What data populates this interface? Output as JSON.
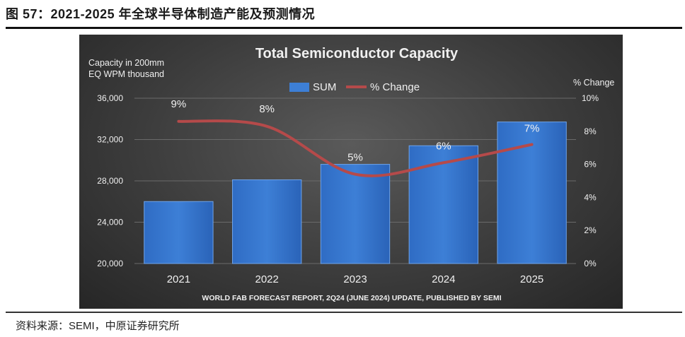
{
  "figure": {
    "title": "图 57：2021-2025 年全球半导体制造产能及预测情况",
    "source": "资料来源：SEMI，中原证券研究所"
  },
  "chart_data": {
    "type": "bar",
    "title": "Total Semiconductor Capacity",
    "subtitle": "WORLD FAB FORECAST REPORT, 2Q24 (JUNE 2024) UPDATE, PUBLISHED BY SEMI",
    "ylabel_lines": [
      "Capacity in 200mm",
      "EQ WPM thousand"
    ],
    "y2label": "% Change",
    "categories": [
      "2021",
      "2022",
      "2023",
      "2024",
      "2025"
    ],
    "series": [
      {
        "name": "SUM",
        "type": "bar",
        "axis": "left",
        "values": [
          26000,
          28100,
          29600,
          31400,
          33700
        ]
      },
      {
        "name": "% Change",
        "type": "line",
        "axis": "right",
        "values": [
          8.6,
          8.3,
          5.4,
          6.1,
          7.2
        ],
        "labels": [
          "9%",
          "8%",
          "5%",
          "6%",
          "7%"
        ]
      }
    ],
    "ylim": [
      20000,
      36000
    ],
    "yticks": [
      20000,
      24000,
      28000,
      32000,
      36000
    ],
    "ytick_labels": [
      "20,000",
      "24,000",
      "28,000",
      "32,000",
      "36,000"
    ],
    "y2lim": [
      0,
      10
    ],
    "y2ticks": [
      0,
      2,
      4,
      6,
      8,
      10
    ],
    "y2tick_labels": [
      "0%",
      "2%",
      "4%",
      "6%",
      "8%",
      "10%"
    ],
    "legend_position": "top-center",
    "grid": true,
    "colors": {
      "bar": "#3d7fd6",
      "line": "#b54a4a",
      "grid": "#6a6a6a",
      "text": "#f0f0f0"
    }
  }
}
